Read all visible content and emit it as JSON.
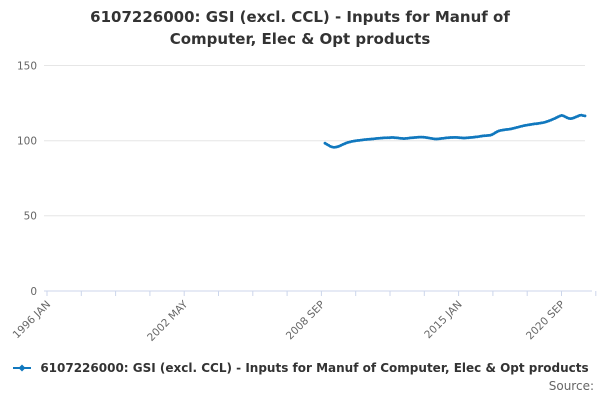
{
  "header": {
    "title": "6107226000: GSI (excl. CCL) - Inputs for Manuf of Computer, Elec & Opt products"
  },
  "legend": {
    "label": "6107226000: GSI (excl. CCL) - Inputs for Manuf of Computer, Elec & Opt products"
  },
  "footer": {
    "source_label": "Source:"
  },
  "colors": {
    "series": "#1178be",
    "grid_line": "#e6e6e6",
    "axis_line": "#ccd6eb",
    "axis_label": "#666666",
    "title_text": "#333333",
    "legend_text": "#333333",
    "source_text": "#666666"
  },
  "chart_data": {
    "type": "line",
    "title": "6107226000: GSI (excl. CCL) - Inputs for Manuf of Computer, Elec & Opt products",
    "xlabel": "",
    "ylabel": "",
    "x_axis": {
      "tick_count": 17,
      "label_rotation": -45,
      "labels": [
        {
          "text": "1996 JAN",
          "tick": 0
        },
        {
          "text": "2002 MAY",
          "tick": 4
        },
        {
          "text": "2008 SEP",
          "tick": 8
        },
        {
          "text": "2015 JAN",
          "tick": 12
        },
        {
          "text": "2020 SEP",
          "tick": 15
        }
      ]
    },
    "y_axis": {
      "ticks": [
        0,
        50,
        100,
        150
      ],
      "range": [
        0,
        150
      ],
      "grid": true
    },
    "legend_position": "bottom",
    "series": [
      {
        "name": "6107226000: GSI (excl. CCL) - Inputs for Manuf of Computer, Elec & Opt products",
        "color": "#1178be",
        "start": "2008-11",
        "frequency": "monthly",
        "values": [
          98.3,
          97.6,
          96.9,
          96.2,
          95.8,
          95.6,
          95.7,
          96.0,
          96.4,
          96.9,
          97.5,
          98.0,
          98.5,
          98.9,
          99.2,
          99.5,
          99.7,
          99.9,
          100.1,
          100.2,
          100.4,
          100.5,
          100.7,
          100.8,
          100.9,
          101.0,
          101.1,
          101.2,
          101.4,
          101.5,
          101.6,
          101.7,
          101.8,
          101.9,
          101.9,
          102.0,
          102.0,
          102.1,
          102.1,
          102.0,
          101.9,
          101.8,
          101.6,
          101.5,
          101.4,
          101.5,
          101.6,
          101.8,
          101.9,
          102.0,
          102.1,
          102.2,
          102.3,
          102.4,
          102.4,
          102.3,
          102.2,
          102.0,
          101.8,
          101.6,
          101.4,
          101.2,
          101.1,
          101.2,
          101.3,
          101.5,
          101.6,
          101.8,
          101.9,
          102.0,
          102.1,
          102.1,
          102.2,
          102.2,
          102.1,
          102.0,
          101.9,
          101.8,
          101.8,
          101.9,
          102.0,
          102.1,
          102.2,
          102.3,
          102.5,
          102.6,
          102.8,
          103.0,
          103.2,
          103.3,
          103.4,
          103.5,
          103.6,
          104.0,
          104.6,
          105.3,
          106.0,
          106.5,
          106.8,
          107.0,
          107.2,
          107.4,
          107.5,
          107.7,
          107.9,
          108.2,
          108.5,
          108.8,
          109.1,
          109.4,
          109.7,
          110.0,
          110.2,
          110.4,
          110.6,
          110.8,
          111.0,
          111.2,
          111.3,
          111.5,
          111.7,
          111.9,
          112.1,
          112.4,
          112.8,
          113.2,
          113.7,
          114.2,
          114.7,
          115.3,
          115.9,
          116.4,
          116.8,
          116.5,
          115.9,
          115.3,
          114.8,
          114.7,
          114.9,
          115.3,
          115.8,
          116.3,
          116.8,
          117.0,
          116.7,
          116.5
        ]
      }
    ]
  }
}
